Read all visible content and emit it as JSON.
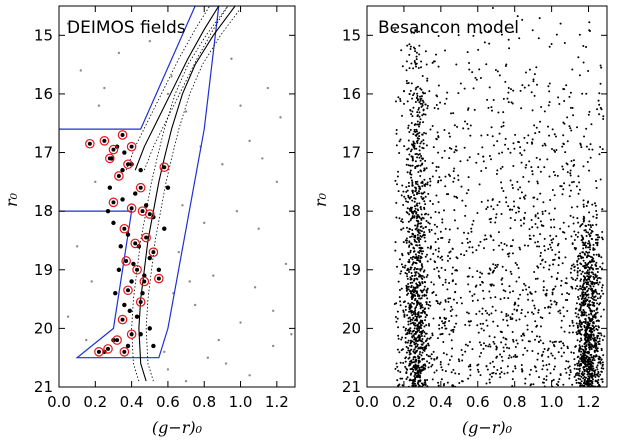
{
  "chart_data": [
    {
      "type": "scatter",
      "title": "DEIMOS fields",
      "xlabel": "(g−r)₀",
      "ylabel": "r₀",
      "xlim": [
        0.0,
        1.3
      ],
      "ylim": [
        21.0,
        14.5
      ],
      "y_inverted": true,
      "xticks": [
        "0.0",
        "0.2",
        "0.4",
        "0.6",
        "0.8",
        "1.0",
        "1.2"
      ],
      "yticks": [
        "15",
        "16",
        "17",
        "18",
        "19",
        "20",
        "21"
      ],
      "grid": false,
      "colors": {
        "field": "#8a8a8a",
        "candidate": "#000000",
        "member_ring": "#e8141a",
        "selection_box": "#1f2fd6",
        "isochrone": "#000000"
      },
      "selection_box": [
        [
          0.0,
          16.6
        ],
        [
          0.45,
          16.6
        ],
        [
          0.75,
          14.5
        ],
        [
          0.88,
          14.5
        ],
        [
          0.88,
          14.5
        ],
        [
          0.8,
          16.6
        ],
        [
          0.6,
          20.0
        ],
        [
          0.55,
          20.5
        ],
        [
          0.1,
          20.5
        ],
        [
          0.3,
          20.0
        ],
        [
          0.4,
          18.0
        ],
        [
          0.0,
          18.0
        ]
      ],
      "isochrone": [
        [
          0.48,
          20.9
        ],
        [
          0.45,
          20.6
        ],
        [
          0.44,
          20.0
        ],
        [
          0.45,
          19.5
        ],
        [
          0.47,
          19.0
        ],
        [
          0.49,
          18.5
        ],
        [
          0.52,
          18.0
        ],
        [
          0.55,
          17.5
        ],
        [
          0.58,
          17.1
        ],
        [
          0.62,
          16.6
        ],
        [
          0.68,
          16.0
        ],
        [
          0.75,
          15.5
        ],
        [
          0.85,
          15.0
        ],
        [
          0.97,
          14.5
        ]
      ],
      "isochrone_rgb": [
        [
          0.42,
          17.3
        ],
        [
          0.47,
          16.9
        ],
        [
          0.55,
          16.4
        ],
        [
          0.63,
          15.9
        ],
        [
          0.71,
          15.4
        ],
        [
          0.8,
          14.9
        ],
        [
          0.88,
          14.5
        ]
      ],
      "candidates": [
        [
          0.32,
          16.9
        ],
        [
          0.36,
          17.0
        ],
        [
          0.4,
          17.2
        ],
        [
          0.45,
          17.3
        ],
        [
          0.28,
          17.6
        ],
        [
          0.35,
          17.8
        ],
        [
          0.42,
          17.7
        ],
        [
          0.48,
          17.9
        ],
        [
          0.52,
          18.1
        ],
        [
          0.3,
          18.2
        ],
        [
          0.38,
          18.4
        ],
        [
          0.44,
          18.6
        ],
        [
          0.5,
          18.8
        ],
        [
          0.33,
          19.0
        ],
        [
          0.4,
          19.2
        ],
        [
          0.46,
          19.4
        ],
        [
          0.36,
          19.6
        ],
        [
          0.43,
          19.8
        ],
        [
          0.5,
          20.0
        ],
        [
          0.3,
          20.2
        ],
        [
          0.38,
          20.3
        ],
        [
          0.25,
          20.4
        ],
        [
          0.55,
          19.0
        ],
        [
          0.58,
          18.3
        ],
        [
          0.6,
          17.6
        ],
        [
          0.27,
          18.0
        ],
        [
          0.34,
          18.6
        ],
        [
          0.41,
          18.9
        ],
        [
          0.47,
          19.1
        ],
        [
          0.31,
          19.4
        ],
        [
          0.39,
          19.7
        ],
        [
          0.45,
          20.1
        ],
        [
          0.52,
          20.3
        ],
        [
          0.35,
          17.3
        ],
        [
          0.29,
          17.1
        ]
      ],
      "members": [
        [
          0.17,
          16.85
        ],
        [
          0.25,
          16.8
        ],
        [
          0.3,
          16.95
        ],
        [
          0.35,
          16.7
        ],
        [
          0.4,
          16.9
        ],
        [
          0.38,
          17.2
        ],
        [
          0.33,
          17.4
        ],
        [
          0.28,
          17.1
        ],
        [
          0.45,
          17.6
        ],
        [
          0.58,
          17.25
        ],
        [
          0.3,
          17.85
        ],
        [
          0.4,
          17.95
        ],
        [
          0.46,
          18.0
        ],
        [
          0.5,
          18.05
        ],
        [
          0.36,
          18.3
        ],
        [
          0.42,
          18.55
        ],
        [
          0.48,
          18.45
        ],
        [
          0.52,
          18.7
        ],
        [
          0.37,
          18.85
        ],
        [
          0.43,
          19.0
        ],
        [
          0.47,
          19.2
        ],
        [
          0.38,
          19.35
        ],
        [
          0.45,
          19.55
        ],
        [
          0.55,
          19.15
        ],
        [
          0.35,
          19.85
        ],
        [
          0.4,
          20.1
        ],
        [
          0.32,
          20.2
        ],
        [
          0.27,
          20.35
        ],
        [
          0.36,
          20.4
        ],
        [
          0.22,
          20.4
        ]
      ],
      "field_stars": [
        [
          0.05,
          14.8
        ],
        [
          0.12,
          15.6
        ],
        [
          0.22,
          16.2
        ],
        [
          0.33,
          15.3
        ],
        [
          0.5,
          15.1
        ],
        [
          0.62,
          15.7
        ],
        [
          0.7,
          16.3
        ],
        [
          0.95,
          15.4
        ],
        [
          1.05,
          16.8
        ],
        [
          1.15,
          15.9
        ],
        [
          1.2,
          17.5
        ],
        [
          1.1,
          18.3
        ],
        [
          1.25,
          18.9
        ],
        [
          0.9,
          17.2
        ],
        [
          0.98,
          18.0
        ],
        [
          0.85,
          19.1
        ],
        [
          0.75,
          19.6
        ],
        [
          1.0,
          19.9
        ],
        [
          1.18,
          20.3
        ],
        [
          0.92,
          20.6
        ],
        [
          0.7,
          20.9
        ],
        [
          0.6,
          20.7
        ],
        [
          0.18,
          19.2
        ],
        [
          0.1,
          18.6
        ],
        [
          0.05,
          19.8
        ],
        [
          0.15,
          20.2
        ],
        [
          0.66,
          18.7
        ],
        [
          0.8,
          18.2
        ],
        [
          1.22,
          16.4
        ],
        [
          1.12,
          17.1
        ],
        [
          0.68,
          17.9
        ],
        [
          0.72,
          19.2
        ],
        [
          0.88,
          20.2
        ],
        [
          1.05,
          20.8
        ],
        [
          1.28,
          20.1
        ],
        [
          1.08,
          19.3
        ],
        [
          0.2,
          17.5
        ],
        [
          0.25,
          15.9
        ],
        [
          0.6,
          16.0
        ],
        [
          0.78,
          16.9
        ],
        [
          1.0,
          16.2
        ],
        [
          1.18,
          19.7
        ],
        [
          0.58,
          20.4
        ],
        [
          0.63,
          19.4
        ],
        [
          0.82,
          20.5
        ]
      ]
    },
    {
      "type": "scatter",
      "title": "Besancon model",
      "xlabel": "(g−r)₀",
      "ylabel": "r₀",
      "xlim": [
        0.0,
        1.3
      ],
      "ylim": [
        21.0,
        14.5
      ],
      "y_inverted": true,
      "xticks": [
        "0.0",
        "0.2",
        "0.4",
        "0.6",
        "0.8",
        "1.0",
        "1.2"
      ],
      "yticks": [
        "15",
        "16",
        "17",
        "18",
        "19",
        "20",
        "21"
      ],
      "grid": false,
      "colors": {
        "model": "#000000"
      },
      "model_density": [
        {
          "x_center": 0.27,
          "x_spread": 0.05,
          "r_min": 14.8,
          "r_max": 21.0,
          "count": 900
        },
        {
          "x_center": 1.2,
          "x_spread": 0.05,
          "r_min": 17.8,
          "r_max": 21.0,
          "count": 800
        },
        {
          "x_min": 0.15,
          "x_max": 1.28,
          "r_min": 14.5,
          "r_max": 21.0,
          "count": 1500
        }
      ]
    }
  ]
}
